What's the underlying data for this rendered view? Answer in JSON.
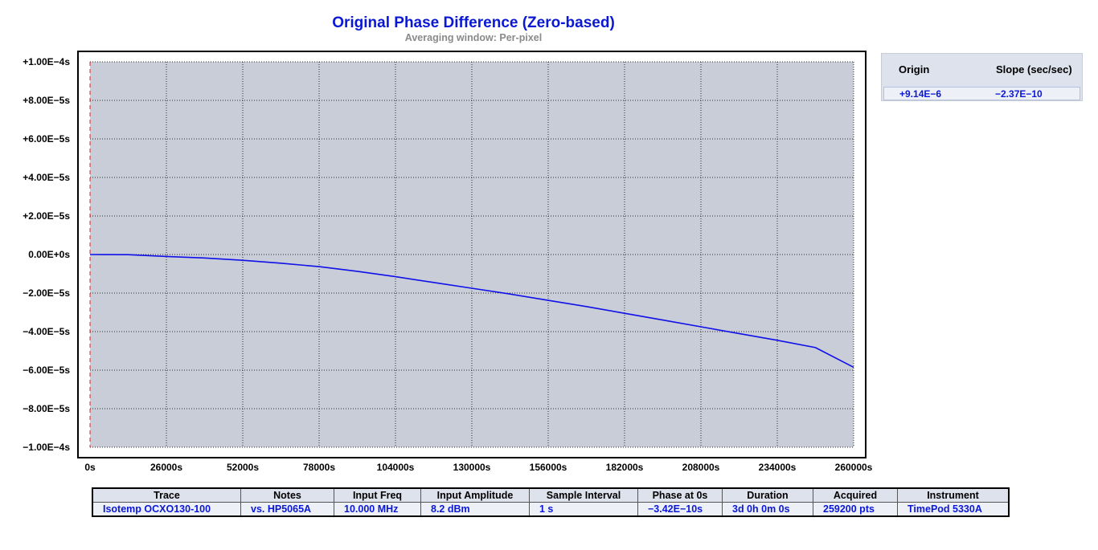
{
  "chart_data": {
    "type": "line",
    "title": "Original Phase Difference (Zero-based)",
    "subtitle": "Averaging window: Per-pixel",
    "xlabel": "",
    "ylabel": "",
    "xlim": [
      0,
      260000
    ],
    "ylim": [
      -0.0001,
      0.0001
    ],
    "x_ticks": [
      0,
      26000,
      52000,
      78000,
      104000,
      130000,
      156000,
      182000,
      208000,
      234000,
      260000
    ],
    "x_tick_labels": [
      "0s",
      "26000s",
      "52000s",
      "78000s",
      "104000s",
      "130000s",
      "156000s",
      "182000s",
      "208000s",
      "234000s",
      "260000s"
    ],
    "y_ticks": [
      0.0001,
      8e-05,
      6e-05,
      4e-05,
      2e-05,
      0,
      -2e-05,
      -4e-05,
      -6e-05,
      -8e-05,
      -0.0001
    ],
    "y_tick_labels": [
      "+1.00E−4s",
      "+8.00E−5s",
      "+6.00E−5s",
      "+4.00E−5s",
      "+2.00E−5s",
      "0.00E+0s",
      "−2.00E−5s",
      "−4.00E−5s",
      "−6.00E−5s",
      "−8.00E−5s",
      "−1.00E−4s"
    ],
    "grid": true,
    "series": [
      {
        "color": "#1010e8",
        "x": [
          0,
          13000,
          26000,
          39000,
          52000,
          65000,
          78000,
          91000,
          104000,
          117000,
          130000,
          143000,
          156000,
          169000,
          182000,
          195000,
          208000,
          221000,
          234000,
          247000,
          260000
        ],
        "y": [
          0,
          -1e-07,
          -1e-06,
          -1.8e-06,
          -3e-06,
          -4.5e-06,
          -6.3e-06,
          -8.7e-06,
          -1.15e-05,
          -1.45e-05,
          -1.75e-05,
          -2.05e-05,
          -2.38e-05,
          -2.7e-05,
          -3.05e-05,
          -3.4e-05,
          -3.75e-05,
          -4.1e-05,
          -4.45e-05,
          -4.83e-05,
          -5.85e-05
        ]
      }
    ]
  },
  "fit": {
    "origin_header": "Origin",
    "slope_header": "Slope (sec/sec)",
    "origin_value": "+9.14E−6",
    "slope_value": "−2.37E−10"
  },
  "info": {
    "headers": {
      "trace": "Trace",
      "notes": "Notes",
      "input_freq": "Input Freq",
      "input_amplitude": "Input Amplitude",
      "sample_interval": "Sample Interval",
      "phase_at_0s": "Phase at 0s",
      "duration": "Duration",
      "acquired": "Acquired",
      "instrument": "Instrument"
    },
    "values": {
      "trace": "Isotemp OCXO130-100",
      "notes": "vs. HP5065A",
      "input_freq": "10.000 MHz",
      "input_amplitude": "8.2 dBm",
      "sample_interval": "1 s",
      "phase_at_0s": "−3.42E−10s",
      "duration": "3d 0h 0m 0s",
      "acquired": "259200 pts",
      "instrument": "TimePod 5330A"
    }
  },
  "colors": {
    "plot_background": "#c9cdd8",
    "trace": "#1010e8",
    "zero_label": "#0a18d6",
    "title": "#0a18d6",
    "highlight_header": "#e00000"
  }
}
